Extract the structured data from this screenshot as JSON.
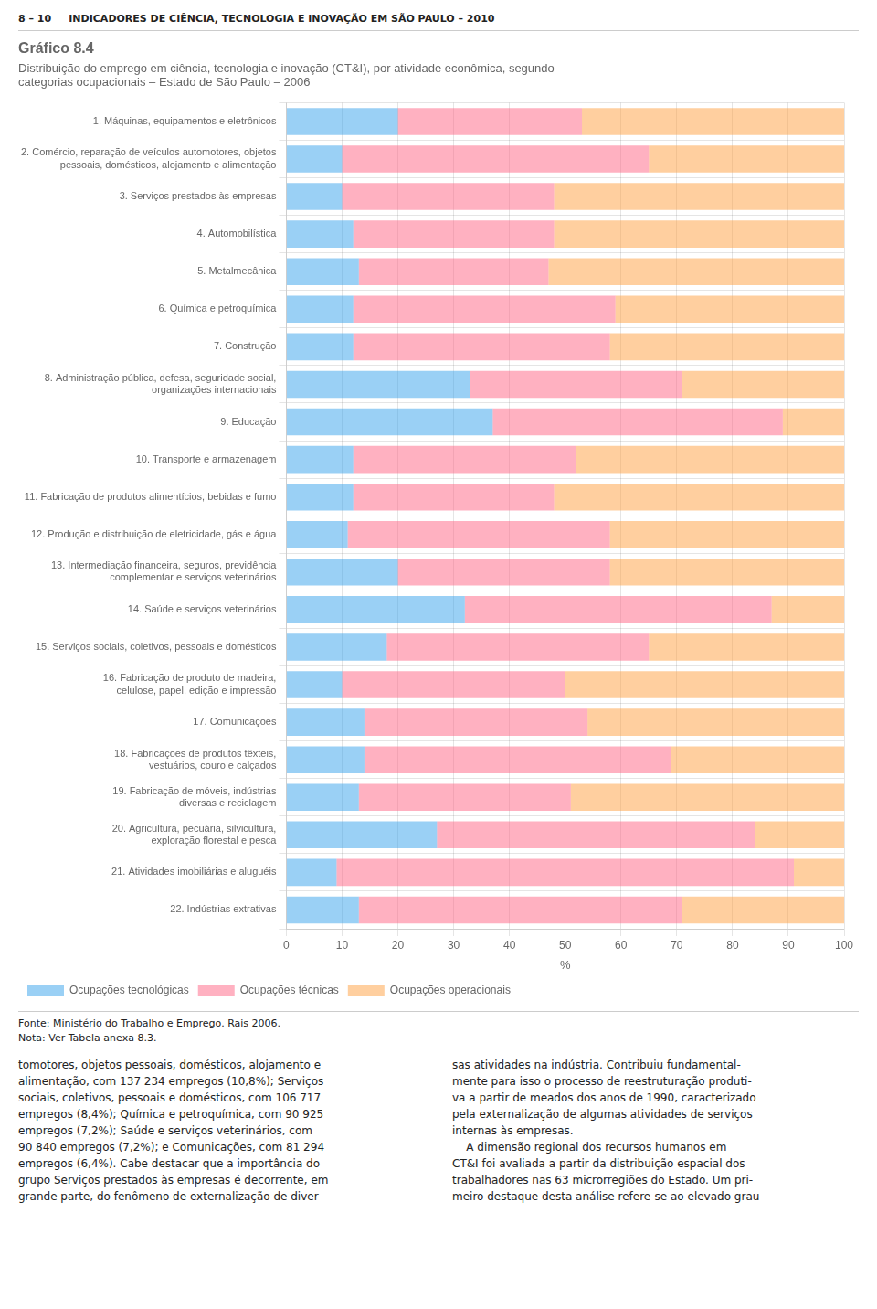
{
  "chart_data": {
    "type": "bar",
    "orientation": "horizontal",
    "stacked": true,
    "title": "Gráfico 8.4",
    "subtitle": "Distribuição do emprego em ciência, tecnologia e inovação (CT&I), por atividade econômica, segundo\ncategorias ocupacionais – Estado de São Paulo – 2006",
    "xlabel": "%",
    "categories": [
      "1. Máquinas, equipamentos e eletrônicos",
      "2. Comércio, reparação de veículos automotores, objetos\npessoais, domésticos, alojamento e alimentação",
      "3. Serviços prestados às empresas",
      "4. Automobilística",
      "5. Metalmecânica",
      "6. Química e petroquímica",
      "7. Construção",
      "8. Administração pública, defesa, seguridade social,\norganizações internacionais",
      "9. Educação",
      "10. Transporte e armazenagem",
      "11. Fabricação de produtos alimentícios, bebidas e fumo",
      "12. Produção e distribuição de eletricidade, gás e água",
      "13. Intermediação financeira, seguros, previdência\ncomplementar e serviços veterinários",
      "14. Saúde e serviços veterinários",
      "15. Serviços sociais, coletivos, pessoais e domésticos",
      "16. Fabricação de produto de madeira,\ncelulose, papel, edição e impressão",
      "17. Comunicações",
      "18. Fabricações de produtos têxteis,\nvestuários, couro e calçados",
      "19. Fabricação de móveis, indústrias\ndiversas e reciclagem",
      "20. Agricultura, pecuária, silvicultura,\nexploração florestal e pesca",
      "21. Atividades imobiliárias e aluguéis",
      "22. Indústrias extrativas"
    ],
    "series": [
      {
        "name": "Ocupações tecnológicas",
        "values": [
          20,
          10,
          10,
          12,
          13,
          12,
          12,
          33,
          37,
          12,
          12,
          11,
          20,
          32,
          18,
          10,
          14,
          14,
          13,
          27,
          9,
          13
        ]
      },
      {
        "name": "Ocupações técnicas",
        "values": [
          33,
          55,
          38,
          36,
          34,
          47,
          46,
          38,
          52,
          40,
          36,
          47,
          38,
          55,
          47,
          40,
          40,
          55,
          38,
          57,
          82,
          58
        ]
      },
      {
        "name": "Ocupações operacionais",
        "values": [
          47,
          35,
          52,
          52,
          53,
          41,
          42,
          29,
          11,
          48,
          52,
          42,
          42,
          13,
          35,
          50,
          46,
          31,
          49,
          16,
          9,
          29
        ]
      }
    ],
    "xlim": [
      0,
      100
    ],
    "xticks": [
      0,
      10,
      20,
      30,
      40,
      50,
      60,
      70,
      80,
      90,
      100
    ],
    "grid": true,
    "legend": "bottom",
    "annotations": [
      "8 – 10     INDICADORES DE CIÊNCIA, TECNOLOGIA E INOVAÇÃO EM SÃO PAULO – 2010",
      "Fonte: Ministério do Trabalho e Emprego. Rais 2006.",
      "Nota: Ver Tabela anexa 8.3.",
      "tomotores, objetos pessoais, domésticos, alojamento e\nalimentação, com 137 234 empregos (10,8%); Serviços\nsociais, coletivos, pessoais e domésticos, com 106 717\nempregos (8,4%); Química e petroquímica, com 90 925\nempregos (7,2%); Saúde e serviços veterinários, com\n90 840 empregos (7,2%); e Comunicações, com 81 294\nempregos (6,4%). Cabe destacar que a importância do\ngrupo Serviços prestados às empresas é decorrente, em\ngrande parte, do fenômeno de externalização de diver-",
      "sas atividades na indústria. Contribuiu fundamental-\nmente para isso o processo de reestruturação produti-\nva a partir de meados dos anos de 1990, caracterizado\npela externalização de algumas atividades de serviços\ninternas às empresas.\n    A dimensão regional dos recursos humanos em\nCT&I foi avaliada a partir da distribuição espacial dos\ntrabalhadores nas 63 microrregiões do Estado. Um pri-\nmeiro destaque desta análise refere-se ao elevado grau"
    ]
  }
}
